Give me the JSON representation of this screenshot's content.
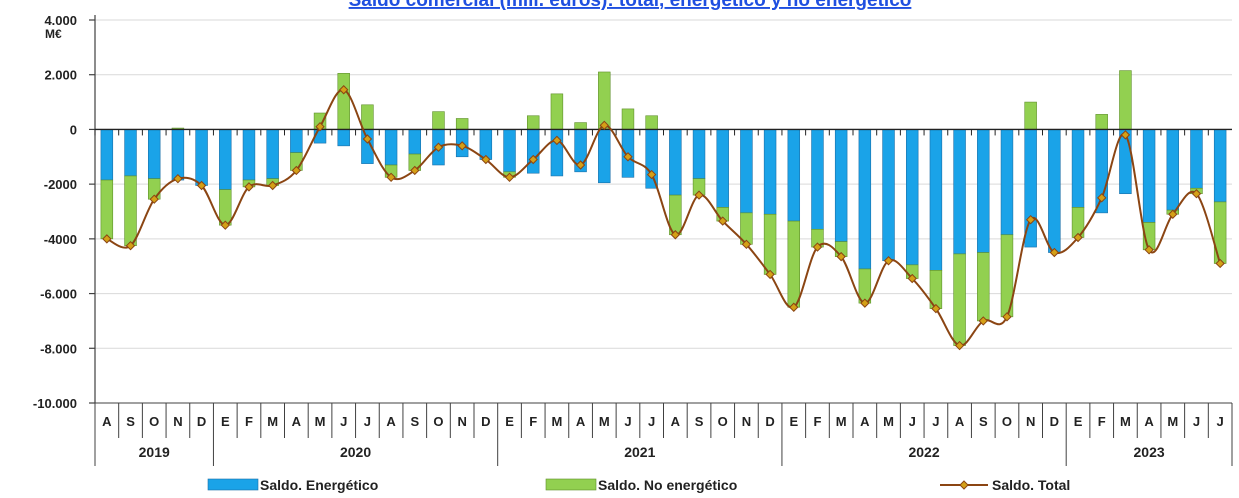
{
  "chart_data": {
    "type": "bar",
    "title": "Saldo comercial (mill. euros): total, energético y no energético",
    "ylabel": "M€",
    "ylim": [
      -10000,
      4000
    ],
    "yticks": [
      4000,
      2000,
      0,
      -2000,
      -4000,
      -6000,
      -8000,
      -10000
    ],
    "ytick_labels": [
      "4.000",
      "2.000",
      "0",
      "-2000",
      "-4000",
      "-6.000",
      "-8.000",
      "-10.000"
    ],
    "grid": true,
    "legend_position": "bottom",
    "colors": {
      "energetico": "#1aa3e8",
      "no_energetico": "#92d050",
      "total_line": "#8b4513",
      "total_marker": "#d4a017"
    },
    "categories": [
      "A",
      "S",
      "O",
      "N",
      "D",
      "E",
      "F",
      "M",
      "A",
      "M",
      "J",
      "J",
      "A",
      "S",
      "O",
      "N",
      "D",
      "E",
      "F",
      "M",
      "A",
      "M",
      "J",
      "J",
      "A",
      "S",
      "O",
      "N",
      "D",
      "E",
      "F",
      "M",
      "A",
      "M",
      "J",
      "J",
      "A",
      "S",
      "O",
      "N",
      "D",
      "E",
      "F",
      "M",
      "A",
      "M",
      "J",
      "J"
    ],
    "years": [
      {
        "label": "2019",
        "start": 0,
        "count": 5
      },
      {
        "label": "2020",
        "start": 5,
        "count": 12
      },
      {
        "label": "2021",
        "start": 17,
        "count": 12
      },
      {
        "label": "2022",
        "start": 29,
        "count": 12
      },
      {
        "label": "2023",
        "start": 41,
        "count": 7
      }
    ],
    "series": [
      {
        "name": "Saldo. Energético",
        "kind": "bar",
        "values": [
          -1850,
          -1700,
          -1800,
          -1850,
          -2050,
          -2200,
          -1850,
          -1800,
          -850,
          -500,
          -600,
          -1250,
          -1300,
          -900,
          -1300,
          -1000,
          -1100,
          -1550,
          -1600,
          -1700,
          -1550,
          -1950,
          -1750,
          -2150,
          -2400,
          -1800,
          -2850,
          -3050,
          -3100,
          -3350,
          -3650,
          -4100,
          -5100,
          -4800,
          -4950,
          -5150,
          -4550,
          -4500,
          -3850,
          -4300,
          -4500,
          -2850,
          -3050,
          -2350,
          -3400,
          -2950,
          -2150,
          -2650
        ]
      },
      {
        "name": "Saldo. No energético",
        "kind": "bar",
        "values": [
          -2150,
          -2550,
          -750,
          50,
          0,
          -1300,
          -250,
          -250,
          -650,
          600,
          2050,
          900,
          -450,
          -600,
          650,
          400,
          0,
          -200,
          500,
          1300,
          250,
          2100,
          750,
          500,
          -1450,
          -600,
          -500,
          -1150,
          -2200,
          -3150,
          -650,
          -550,
          -1250,
          0,
          -500,
          -1400,
          -3350,
          -2500,
          -3000,
          1000,
          0,
          -1100,
          550,
          2150,
          -1000,
          -150,
          -200,
          -2250
        ]
      },
      {
        "name": "Saldo. Total",
        "kind": "line",
        "values": [
          -4000,
          -4250,
          -2550,
          -1800,
          -2050,
          -3500,
          -2100,
          -2050,
          -1500,
          100,
          1450,
          -350,
          -1750,
          -1500,
          -650,
          -600,
          -1100,
          -1750,
          -1100,
          -400,
          -1300,
          150,
          -1000,
          -1650,
          -3850,
          -2400,
          -3350,
          -4200,
          -5300,
          -6500,
          -4300,
          -4650,
          -6350,
          -4800,
          -5450,
          -6550,
          -7900,
          -7000,
          -6850,
          -3300,
          -4500,
          -3950,
          -2500,
          -200,
          -4400,
          -3100,
          -2350,
          -4900
        ]
      }
    ]
  }
}
